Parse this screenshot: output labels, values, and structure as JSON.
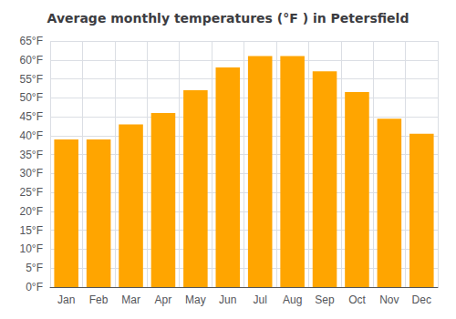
{
  "chart_data": {
    "type": "bar",
    "title": "Average monthly temperatures (°F ) in Petersfield",
    "categories": [
      "Jan",
      "Feb",
      "Mar",
      "Apr",
      "May",
      "Jun",
      "Jul",
      "Aug",
      "Sep",
      "Oct",
      "Nov",
      "Dec"
    ],
    "values": [
      39,
      39,
      43,
      46,
      52,
      58,
      61,
      61,
      57,
      51.5,
      44.5,
      40.5
    ],
    "color": "#FFA500",
    "ylim": [
      0,
      65
    ],
    "yticks": [
      {
        "value": 0,
        "label": "0°F"
      },
      {
        "value": 5,
        "label": "5°F"
      },
      {
        "value": 10,
        "label": "10°F"
      },
      {
        "value": 15,
        "label": "15°F"
      },
      {
        "value": 20,
        "label": "20°F"
      },
      {
        "value": 25,
        "label": "25°F"
      },
      {
        "value": 30,
        "label": "30°F"
      },
      {
        "value": 35,
        "label": "35°F"
      },
      {
        "value": 40,
        "label": "40°F"
      },
      {
        "value": 45,
        "label": "45°F"
      },
      {
        "value": 50,
        "label": "50°F"
      },
      {
        "value": 55,
        "label": "55°F"
      },
      {
        "value": 60,
        "label": "60°F"
      },
      {
        "value": 65,
        "label": "65°F"
      }
    ],
    "grid": true
  }
}
